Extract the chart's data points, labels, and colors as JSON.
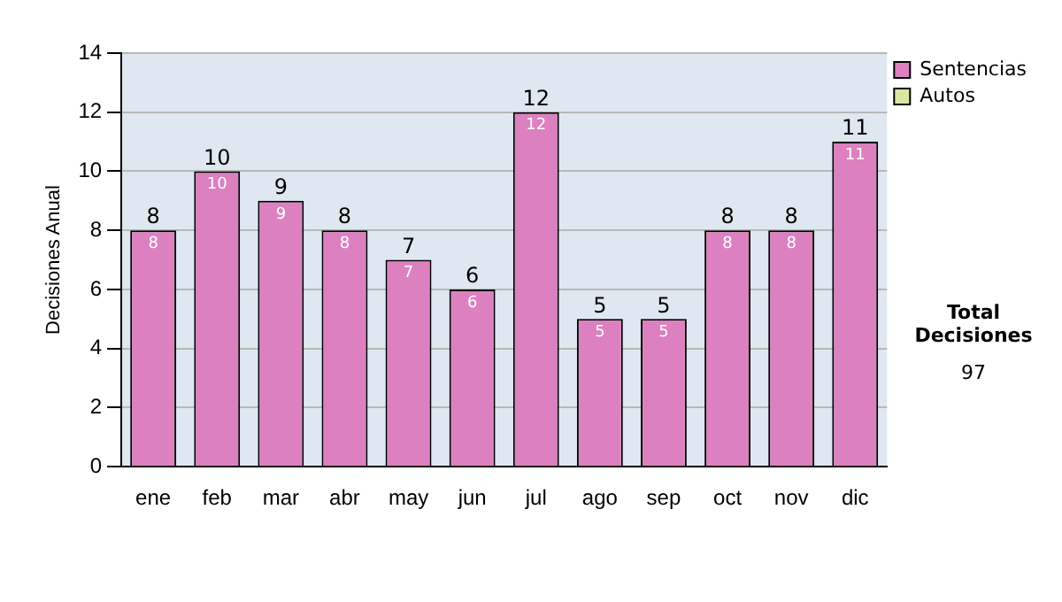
{
  "chart_data": {
    "type": "bar",
    "ylabel": "Decisiones Anual",
    "categories": [
      "ene",
      "feb",
      "mar",
      "abr",
      "may",
      "jun",
      "jul",
      "ago",
      "sep",
      "oct",
      "nov",
      "dic"
    ],
    "series": [
      {
        "name": "Sentencias",
        "color": "#dd80c0",
        "values": [
          8,
          10,
          9,
          8,
          7,
          6,
          12,
          5,
          5,
          8,
          8,
          11
        ],
        "value_labels": [
          "8",
          "10",
          "9",
          "8",
          "7",
          "6",
          "12",
          "5",
          "5",
          "8",
          "8",
          "11"
        ]
      },
      {
        "name": "Autos",
        "color": "#d8e8a0",
        "values": [
          0,
          0,
          0,
          0,
          0,
          0,
          0,
          0,
          0,
          0,
          0,
          0
        ]
      }
    ],
    "stacked": true,
    "totals": [
      "8",
      "10",
      "9",
      "8",
      "7",
      "6",
      "12",
      "5",
      "5",
      "8",
      "8",
      "11"
    ],
    "ylim": [
      0,
      14
    ],
    "yticks": [
      0,
      2,
      4,
      6,
      8,
      10,
      12,
      14
    ],
    "grid": "y",
    "legend": "right",
    "annotations": [
      "Total Decisiones",
      "97"
    ]
  }
}
